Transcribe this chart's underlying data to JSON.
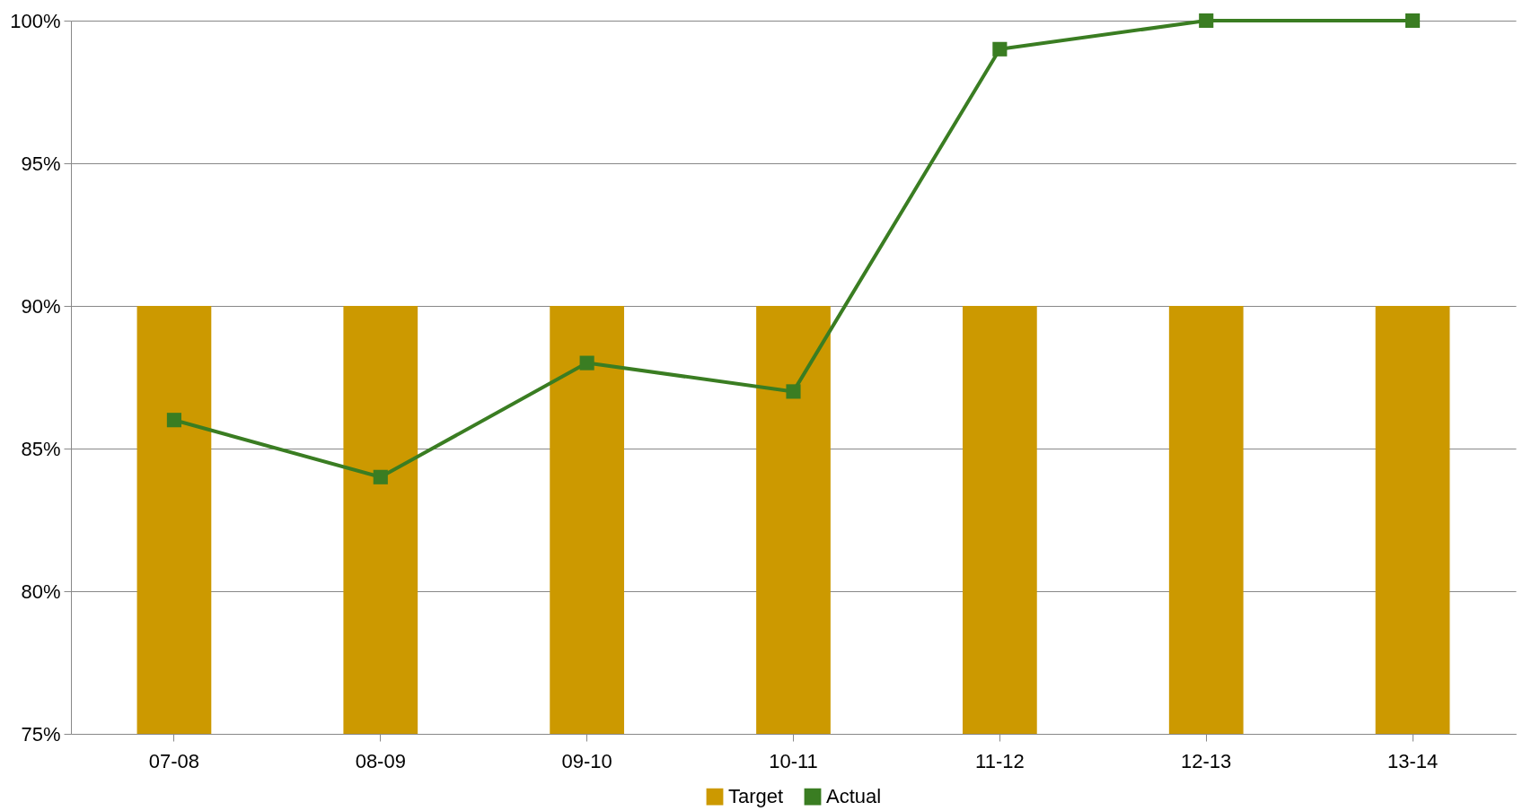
{
  "chart_data": {
    "type": "bar",
    "categories": [
      "07-08",
      "08-09",
      "09-10",
      "10-11",
      "11-12",
      "12-13",
      "13-14"
    ],
    "series": [
      {
        "name": "Target",
        "color": "#cc9900",
        "values": [
          90,
          90,
          90,
          90,
          90,
          90,
          90
        ]
      },
      {
        "name": "Actual",
        "type": "line",
        "color": "#3a7d22",
        "values": [
          86,
          84,
          88,
          87,
          99,
          100,
          100
        ]
      }
    ],
    "ylim": [
      75,
      100
    ],
    "yticks": [
      {
        "value": 75,
        "label": "75%"
      },
      {
        "value": 80,
        "label": "80%"
      },
      {
        "value": 85,
        "label": "85%"
      },
      {
        "value": 90,
        "label": "90%"
      },
      {
        "value": 95,
        "label": "95%"
      },
      {
        "value": 100,
        "label": "100%"
      }
    ],
    "grid": "y",
    "legend": "bottom",
    "marker": "square"
  }
}
